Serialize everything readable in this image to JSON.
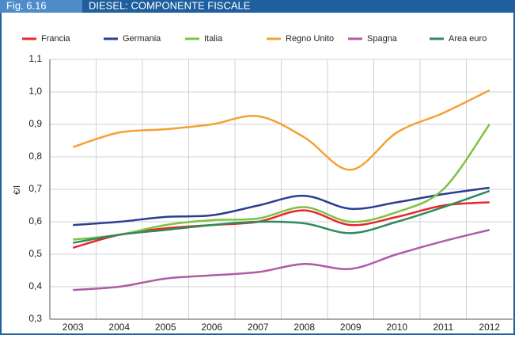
{
  "chart_data": {
    "type": "line",
    "figure_label": "Fig. 6.16",
    "title": "DIESEL: COMPONENTE FISCALE",
    "y_label": "€/l",
    "categories": [
      "2003",
      "2004",
      "2005",
      "2006",
      "2007",
      "2008",
      "2009",
      "2010",
      "2011",
      "2012"
    ],
    "series": [
      {
        "name": "Francia",
        "color": "#e8262b",
        "values": [
          0.52,
          0.56,
          0.58,
          0.59,
          0.6,
          0.635,
          0.59,
          0.615,
          0.65,
          0.66
        ]
      },
      {
        "name": "Germania",
        "color": "#2b3d91",
        "values": [
          0.59,
          0.6,
          0.615,
          0.62,
          0.65,
          0.68,
          0.64,
          0.66,
          0.685,
          0.705
        ]
      },
      {
        "name": "Italia",
        "color": "#7dc242",
        "values": [
          0.545,
          0.56,
          0.59,
          0.605,
          0.61,
          0.645,
          0.6,
          0.63,
          0.7,
          0.9
        ]
      },
      {
        "name": "Regno Unito",
        "color": "#f5a033",
        "values": [
          0.83,
          0.875,
          0.885,
          0.9,
          0.925,
          0.86,
          0.76,
          0.875,
          0.935,
          1.005
        ]
      },
      {
        "name": "Spagna",
        "color": "#b05ba5",
        "values": [
          0.39,
          0.4,
          0.425,
          0.435,
          0.445,
          0.47,
          0.455,
          0.5,
          0.54,
          0.575
        ]
      },
      {
        "name": "Area euro",
        "color": "#2f8a5b",
        "values": [
          0.535,
          0.56,
          0.575,
          0.59,
          0.6,
          0.595,
          0.565,
          0.6,
          0.645,
          0.695
        ]
      }
    ],
    "ylim": [
      0.3,
      1.1
    ],
    "yticks": [
      {
        "value": 0.3,
        "label": "0,3"
      },
      {
        "value": 0.4,
        "label": "0,4"
      },
      {
        "value": 0.5,
        "label": "0,5"
      },
      {
        "value": 0.6,
        "label": "0,6"
      },
      {
        "value": 0.7,
        "label": "0,7"
      },
      {
        "value": 0.8,
        "label": "0,8"
      },
      {
        "value": 0.9,
        "label": "0,9"
      },
      {
        "value": 1.0,
        "label": "1,0"
      },
      {
        "value": 1.1,
        "label": "1,1"
      }
    ],
    "grid": true
  }
}
